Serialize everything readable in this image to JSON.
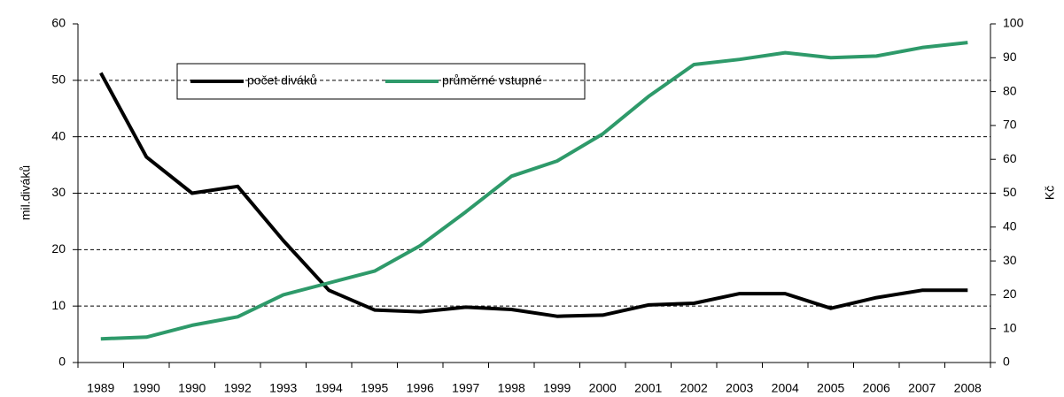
{
  "chart_data": {
    "type": "line",
    "categories": [
      "1989",
      "1990",
      "1990",
      "1992",
      "1993",
      "1994",
      "1995",
      "1996",
      "1997",
      "1998",
      "1999",
      "2000",
      "2001",
      "2002",
      "2003",
      "2004",
      "2005",
      "2006",
      "2007",
      "2008"
    ],
    "series": [
      {
        "name": "počet diváků",
        "color": "#000000",
        "values": [
          51.3,
          36.4,
          30.0,
          31.2,
          21.6,
          12.8,
          9.3,
          9.0,
          9.8,
          9.4,
          8.2,
          8.4,
          10.2,
          10.5,
          12.2,
          12.2,
          9.6,
          11.5,
          12.8,
          12.8
        ]
      },
      {
        "name": "průměrné vstupné",
        "color": "#2e9a6a",
        "axis": "y2",
        "values": [
          7,
          7.5,
          11,
          13.5,
          20,
          23.5,
          27,
          34.5,
          44.5,
          55,
          59.5,
          67.5,
          78.5,
          88,
          89.5,
          91.5,
          90,
          90.5,
          93,
          94.5
        ]
      }
    ],
    "ylabel": "mil.diváků",
    "y2label": "Kč",
    "ylim": [
      0,
      60
    ],
    "yticks": [
      0,
      10,
      20,
      30,
      40,
      50,
      60
    ],
    "y2lim": [
      0,
      100
    ],
    "y2ticks": [
      0,
      10,
      20,
      30,
      40,
      50,
      60,
      70,
      80,
      90,
      100
    ],
    "grid": true
  }
}
